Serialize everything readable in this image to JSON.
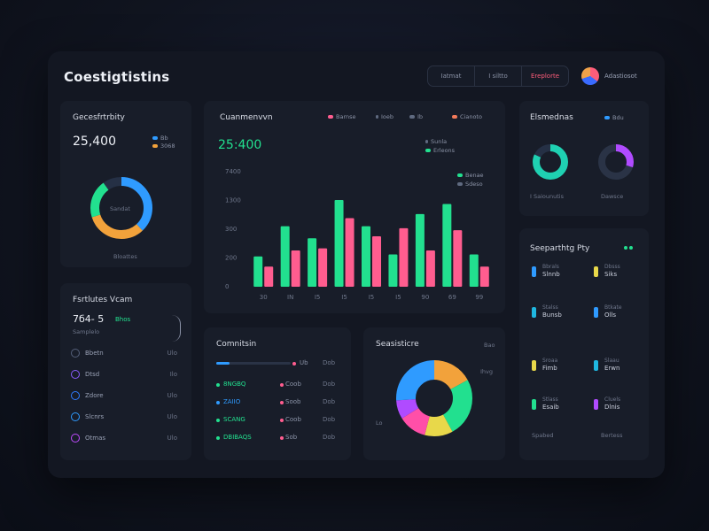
{
  "app": {
    "title": "Coestigtistins"
  },
  "topnav": {
    "items": [
      "Iatmat",
      "I siltto",
      "Ereplorte"
    ],
    "active": 2
  },
  "user": {
    "name": "Adastiosot"
  },
  "colors": {
    "green": "#22e08f",
    "pink": "#ff5d8f",
    "blue": "#2f9bff",
    "orange": "#f2a23b",
    "purple": "#b04bff",
    "teal": "#1fd1b2",
    "yellow": "#e8d84a"
  },
  "card1": {
    "title": "Gecesfrtrbity",
    "value": "25,400",
    "legend": [
      {
        "label": "Bb",
        "color": "#2f9bff"
      },
      {
        "label": "3068",
        "color": "#f2a23b"
      }
    ],
    "donut_label": "Sandat",
    "footer": "Bloattes",
    "chart_data": {
      "type": "pie",
      "categories": [
        "Blue",
        "Orange",
        "Green",
        "Dark"
      ],
      "values": [
        38,
        32,
        20,
        10
      ],
      "colors": [
        "#2f9bff",
        "#f2a23b",
        "#22e08f",
        "#253045"
      ]
    }
  },
  "card2": {
    "title": "Fsrtlutes Vcam",
    "value": "7б4- 5",
    "value_tag": "Bhos",
    "subtitle": "Samplelo",
    "items": [
      {
        "label": "Bbetn",
        "value": "Ulo",
        "icon": "gear-icon"
      },
      {
        "label": "Dtsd",
        "value": "Ilo",
        "icon": "document-icon"
      },
      {
        "label": "Zdore",
        "value": "Ulo",
        "icon": "globe-icon"
      },
      {
        "label": "Slcnrs",
        "value": "Ulo",
        "icon": "clock-icon"
      },
      {
        "label": "Otmas",
        "value": "Ulo",
        "icon": "user-icon"
      }
    ]
  },
  "card3": {
    "title": "Cuanmenvvn",
    "value": "25:400",
    "legend_top": [
      {
        "label": "Barnse",
        "color": "#ff5d8f"
      },
      {
        "label": "Ioeb",
        "color": "#5f6a80"
      },
      {
        "label": "Ib",
        "color": "#5f6a80"
      },
      {
        "label": "Cianoto",
        "color": "#f27a5a"
      }
    ],
    "legend_right": [
      {
        "label": "Sunla",
        "color": "#5f6a80"
      },
      {
        "label": "Erleons",
        "color": "#22e08f"
      },
      {
        "label": "Benae",
        "color": "#22e08f"
      },
      {
        "label": "Sdeso",
        "color": "#5f6a80"
      }
    ],
    "chart_data": {
      "type": "bar",
      "categories": [
        "30",
        "IN",
        "I5",
        "I5",
        "I5",
        "I5",
        "90",
        "69",
        "99"
      ],
      "series": [
        {
          "name": "Erleons",
          "values": [
            150,
            300,
            240,
            430,
            300,
            160,
            360,
            410,
            160
          ],
          "color": "#22e08f"
        },
        {
          "name": "Barnse",
          "values": [
            100,
            180,
            190,
            340,
            250,
            290,
            180,
            280,
            100
          ],
          "color": "#ff5d8f"
        }
      ],
      "ylabels": [
        "0",
        "200",
        "300",
        "1300",
        "7400"
      ],
      "ylim": [
        0,
        500
      ]
    }
  },
  "card4": {
    "title": "Comnitsin",
    "rows": [
      {
        "name": "",
        "v1": "Ub",
        "v2": "Dob",
        "color": "#2f9bff"
      },
      {
        "name": "8NGBQ",
        "v1": "Coob",
        "v2": "Dob",
        "color": "#22e08f"
      },
      {
        "name": "ZAIIO",
        "v1": "Soob",
        "v2": "Dob",
        "color": "#2f9bff"
      },
      {
        "name": "SCANG",
        "v1": "Coob",
        "v2": "Dob",
        "color": "#22e08f"
      },
      {
        "name": "DBIBAQS",
        "v1": "Sob",
        "v2": "Dob",
        "color": "#22e08f"
      }
    ]
  },
  "card5": {
    "title": "Seasisticre",
    "note_top": "Bao",
    "note_right": "Ihvg",
    "label_left": "Lo",
    "chart_data": {
      "type": "pie",
      "categories": [
        "Orange",
        "Green",
        "Yellow",
        "Pink",
        "Purple",
        "Blue"
      ],
      "values": [
        17,
        25,
        12,
        12,
        8,
        26
      ],
      "colors": [
        "#f2a23b",
        "#22e08f",
        "#e8d84a",
        "#ff4fa8",
        "#b04bff",
        "#2f9bff"
      ]
    }
  },
  "card6": {
    "title": "Elsmednas",
    "tag": "Bdu",
    "donut1_label": "I Saiounutis",
    "donut2_label": "Dawsce",
    "chart_data": [
      {
        "type": "pie",
        "categories": [
          "Teal",
          "Dark"
        ],
        "values": [
          82,
          18
        ],
        "colors": [
          "#1fd1b2",
          "#253045"
        ]
      },
      {
        "type": "pie",
        "categories": [
          "Purple",
          "Dark"
        ],
        "values": [
          30,
          70
        ],
        "colors": [
          "#b04bff",
          "#2a3346"
        ]
      }
    ]
  },
  "card7": {
    "title": "Seeparthtg Pty",
    "stats": [
      {
        "label": "Bbrals",
        "value": "Slnnb",
        "color": "#2f9bff"
      },
      {
        "label": "Dbsss",
        "value": "Siks",
        "color": "#e8d84a"
      },
      {
        "label": "Stalss",
        "value": "Bunsb",
        "color": "#1fb7e0"
      },
      {
        "label": "Btkate",
        "value": "Olls",
        "color": "#2f9bff"
      },
      {
        "label": "Sroaa",
        "value": "Fimb",
        "color": "#e8d84a"
      },
      {
        "label": "Slaau",
        "value": "Erwn",
        "color": "#1fb7e0"
      },
      {
        "label": "Stlass",
        "value": "Esaib",
        "color": "#22e08f"
      },
      {
        "label": "Cluels",
        "value": "Dlnis",
        "color": "#b04bff"
      }
    ],
    "footer_left": "Spabed",
    "footer_right": "Bertess"
  }
}
